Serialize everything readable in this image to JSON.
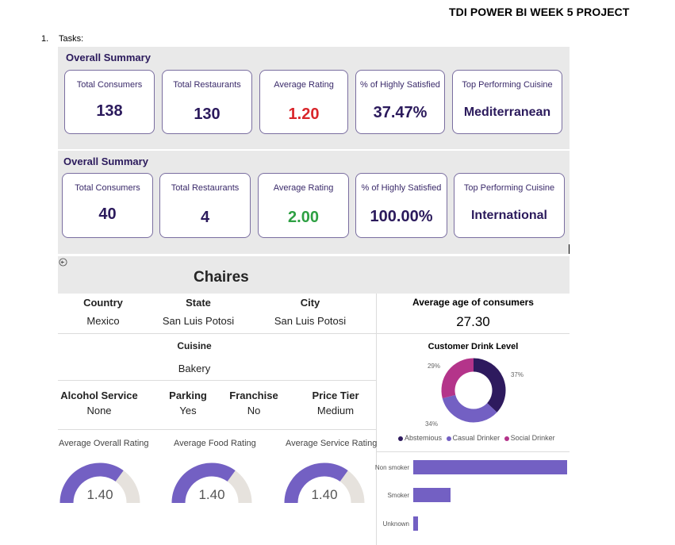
{
  "document": {
    "title": "TDI POWER BI WEEK 5 PROJECT",
    "list_number": "1.",
    "list_item": "Tasks:"
  },
  "summary_1": {
    "title": "Overall Summary",
    "cards": [
      {
        "label": "Total Consumers",
        "value": "138"
      },
      {
        "label": "Total Restaurants",
        "value": "130"
      },
      {
        "label": "Average Rating",
        "value": "1.20",
        "color": "#d9262b"
      },
      {
        "label": "% of Highly Satisfied",
        "value": "37.47%"
      },
      {
        "label": "Top Performing Cuisine",
        "value": "Mediterranean"
      }
    ]
  },
  "summary_2": {
    "title": "Overall Summary",
    "cards": [
      {
        "label": "Total Consumers",
        "value": "40"
      },
      {
        "label": "Total Restaurants",
        "value": "4"
      },
      {
        "label": "Average Rating",
        "value": "2.00",
        "color": "#2ea043"
      },
      {
        "label": "% of Highly Satisfied",
        "value": "100.00%"
      },
      {
        "label": "Top Performing Cuisine",
        "value": "International"
      }
    ]
  },
  "restaurant": {
    "name": "Chaires",
    "back_icon": "back-arrow-icon",
    "country_label": "Country",
    "country": "Mexico",
    "state_label": "State",
    "state": "San Luis Potosi",
    "city_label": "City",
    "city": "San Luis Potosi",
    "cuisine_label": "Cuisine",
    "cuisine": "Bakery",
    "alcohol_label": "Alcohol Service",
    "alcohol": "None",
    "parking_label": "Parking",
    "parking": "Yes",
    "franchise_label": "Franchise",
    "franchise": "No",
    "price_label": "Price Tier",
    "price": "Medium",
    "avg_age_label": "Average age of consumers",
    "avg_age": "27.30"
  },
  "gauges": [
    {
      "label": "Average Overall Rating",
      "value": "1.40",
      "fraction": 0.7
    },
    {
      "label": "Average Food Rating",
      "value": "1.40",
      "fraction": 0.7
    },
    {
      "label": "Average Service Rating",
      "value": "1.40",
      "fraction": 0.7
    }
  ],
  "chart_data": [
    {
      "type": "pie",
      "title": "Customer Drink Level",
      "legend_position": "bottom",
      "categories": [
        "Abstemious",
        "Casual Drinker",
        "Social Drinker"
      ],
      "values": [
        37,
        34,
        29
      ],
      "labels": [
        "37%",
        "34%",
        "29%"
      ],
      "colors": [
        "#2e1a5e",
        "#7360c3",
        "#b4348a"
      ]
    },
    {
      "type": "bar",
      "orientation": "horizontal",
      "categories": [
        "Non smoker",
        "Smoker",
        "Unknown"
      ],
      "values": [
        100,
        24,
        3
      ],
      "color": "#7360c3"
    }
  ]
}
